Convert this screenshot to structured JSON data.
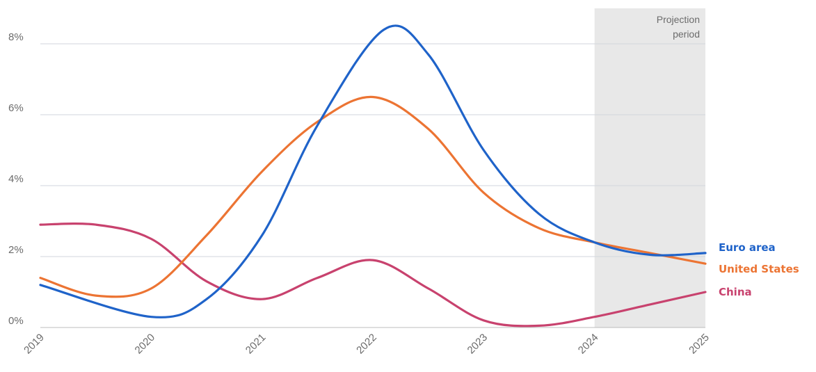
{
  "chart_data": {
    "type": "line",
    "x": [
      "2019",
      "2020",
      "2021",
      "2022",
      "2023",
      "2024",
      "2025"
    ],
    "y_ticks": [
      "0%",
      "2%",
      "4%",
      "6%",
      "8%"
    ],
    "ylim": [
      0,
      9
    ],
    "grid": "horizontal",
    "legend_placement": "right, end of lines",
    "projection": {
      "label_line1": "Projection",
      "label_line2": "period",
      "from": "2024",
      "to": "2025",
      "color": "#e8e8e8"
    },
    "series": [
      {
        "name": "Euro area",
        "color": "#1f63c9",
        "points": [
          {
            "x": 2019.0,
            "y": 1.2
          },
          {
            "x": 2020.0,
            "y": 0.3
          },
          {
            "x": 2020.5,
            "y": 0.8
          },
          {
            "x": 2021.0,
            "y": 2.6
          },
          {
            "x": 2021.5,
            "y": 5.7
          },
          {
            "x": 2022.1,
            "y": 8.4
          },
          {
            "x": 2022.5,
            "y": 7.7
          },
          {
            "x": 2023.0,
            "y": 5.0
          },
          {
            "x": 2023.5,
            "y": 3.2
          },
          {
            "x": 2024.0,
            "y": 2.4
          },
          {
            "x": 2024.5,
            "y": 2.05
          },
          {
            "x": 2025.0,
            "y": 2.1
          }
        ]
      },
      {
        "name": "United States",
        "color": "#ec7433",
        "points": [
          {
            "x": 2019.0,
            "y": 1.4
          },
          {
            "x": 2019.5,
            "y": 0.9
          },
          {
            "x": 2020.0,
            "y": 1.1
          },
          {
            "x": 2020.5,
            "y": 2.6
          },
          {
            "x": 2021.0,
            "y": 4.4
          },
          {
            "x": 2021.5,
            "y": 5.8
          },
          {
            "x": 2022.0,
            "y": 6.5
          },
          {
            "x": 2022.5,
            "y": 5.6
          },
          {
            "x": 2023.0,
            "y": 3.8
          },
          {
            "x": 2023.5,
            "y": 2.8
          },
          {
            "x": 2024.0,
            "y": 2.4
          },
          {
            "x": 2024.5,
            "y": 2.1
          },
          {
            "x": 2025.0,
            "y": 1.8
          }
        ]
      },
      {
        "name": "China",
        "color": "#c8426e",
        "points": [
          {
            "x": 2019.0,
            "y": 2.9
          },
          {
            "x": 2019.5,
            "y": 2.9
          },
          {
            "x": 2020.0,
            "y": 2.5
          },
          {
            "x": 2020.5,
            "y": 1.3
          },
          {
            "x": 2021.0,
            "y": 0.8
          },
          {
            "x": 2021.5,
            "y": 1.4
          },
          {
            "x": 2022.0,
            "y": 1.9
          },
          {
            "x": 2022.5,
            "y": 1.1
          },
          {
            "x": 2023.0,
            "y": 0.2
          },
          {
            "x": 2023.5,
            "y": 0.05
          },
          {
            "x": 2024.0,
            "y": 0.3
          },
          {
            "x": 2024.5,
            "y": 0.65
          },
          {
            "x": 2025.0,
            "y": 1.0
          }
        ]
      }
    ]
  }
}
